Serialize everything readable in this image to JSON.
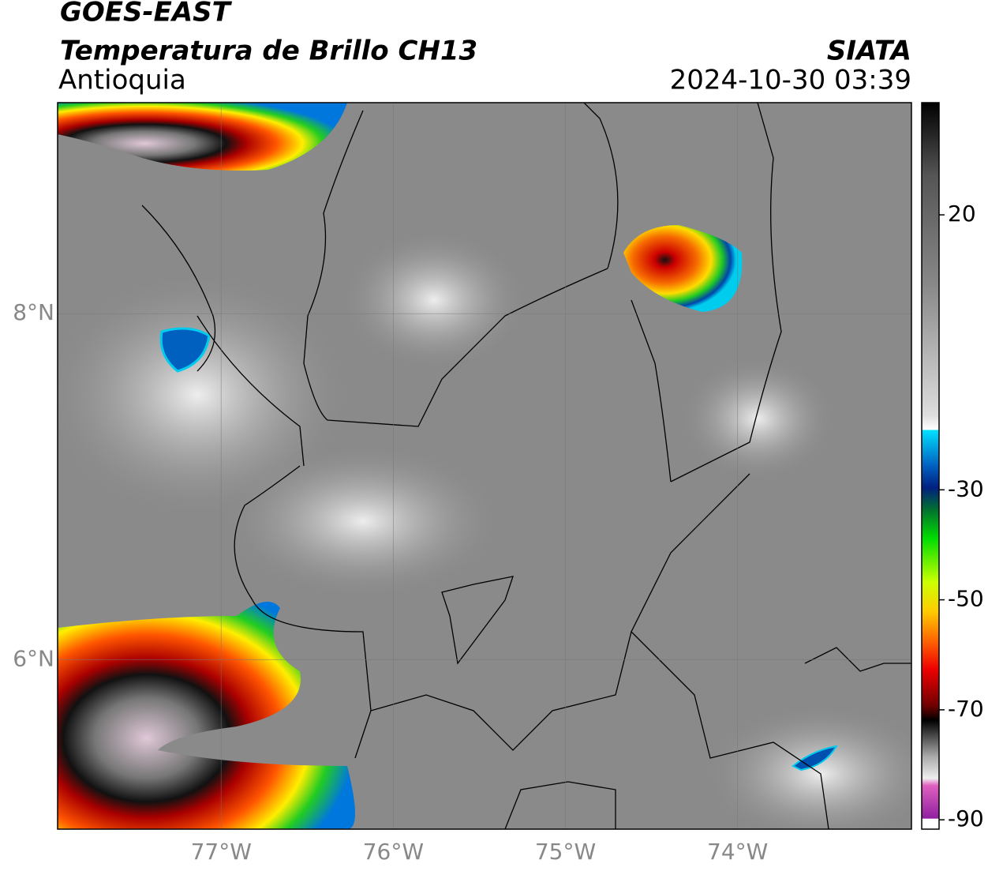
{
  "header": {
    "title": "GOES-EAST",
    "subtitle": "Temperatura de Brillo CH13",
    "region": "Antioquia",
    "source": "SIATA",
    "timestamp": "2024-10-30 03:39"
  },
  "map": {
    "xlim": [
      -77.95,
      -72.99
    ],
    "ylim": [
      5.02,
      9.22
    ],
    "xticks": [
      {
        "value": -77,
        "label": "77°W"
      },
      {
        "value": -76,
        "label": "76°W"
      },
      {
        "value": -75,
        "label": "75°W"
      },
      {
        "value": -74,
        "label": "74°W"
      }
    ],
    "yticks": [
      {
        "value": 8,
        "label": "8°N"
      },
      {
        "value": 6,
        "label": "6°N"
      }
    ],
    "grid": true
  },
  "colorbar": {
    "lim": [
      -91.7,
      40.4
    ],
    "ticks": [
      20,
      -30,
      -50,
      -70,
      -90
    ]
  }
}
